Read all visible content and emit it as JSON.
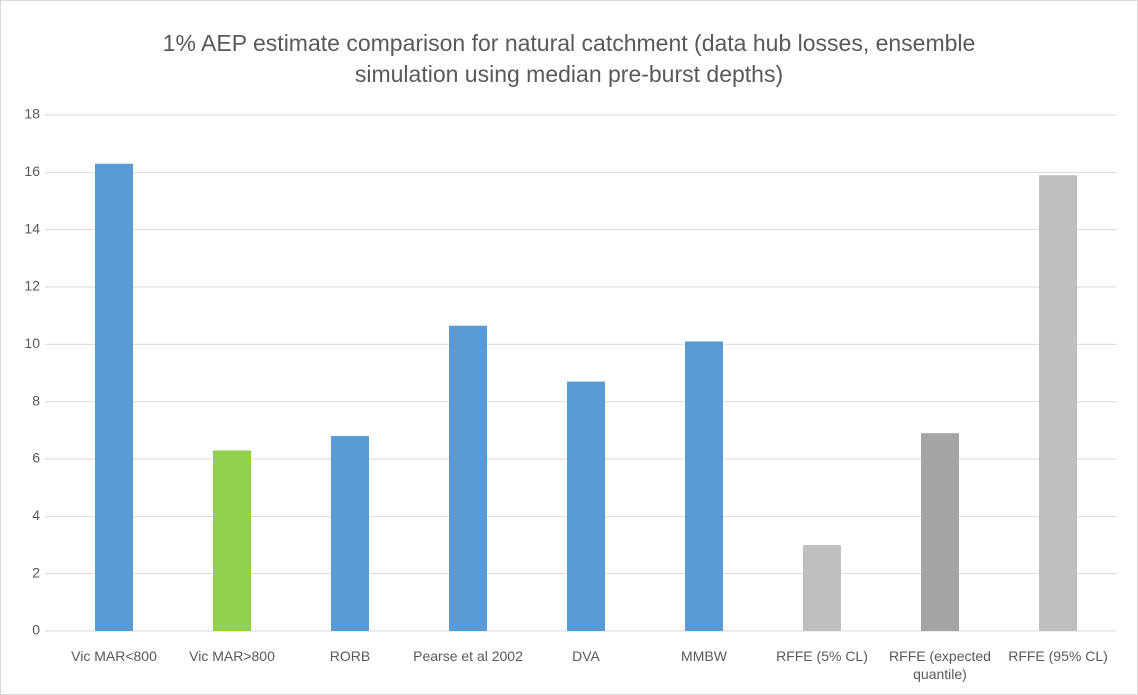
{
  "chart_data": {
    "type": "bar",
    "title": "1% AEP estimate comparison for natural catchment (data hub losses, ensemble simulation using median pre-burst depths)",
    "categories": [
      "Vic MAR<800",
      "Vic MAR>800",
      "RORB",
      "Pearse et al 2002",
      "DVA",
      "MMBW",
      "RFFE (5% CL)",
      "RFFE (expected quantile)",
      "RFFE (95% CL)"
    ],
    "values": [
      16.3,
      6.3,
      6.8,
      10.65,
      8.7,
      10.1,
      3.0,
      6.9,
      15.9
    ],
    "colors": [
      "#5b9bd5",
      "#92d050",
      "#5b9bd5",
      "#5b9bd5",
      "#5b9bd5",
      "#5b9bd5",
      "#bfbfbf",
      "#a5a5a5",
      "#bfbfbf"
    ],
    "ylim": [
      0,
      18
    ],
    "yticks": [
      0,
      2,
      4,
      6,
      8,
      10,
      12,
      14,
      16,
      18
    ],
    "grid": true
  }
}
